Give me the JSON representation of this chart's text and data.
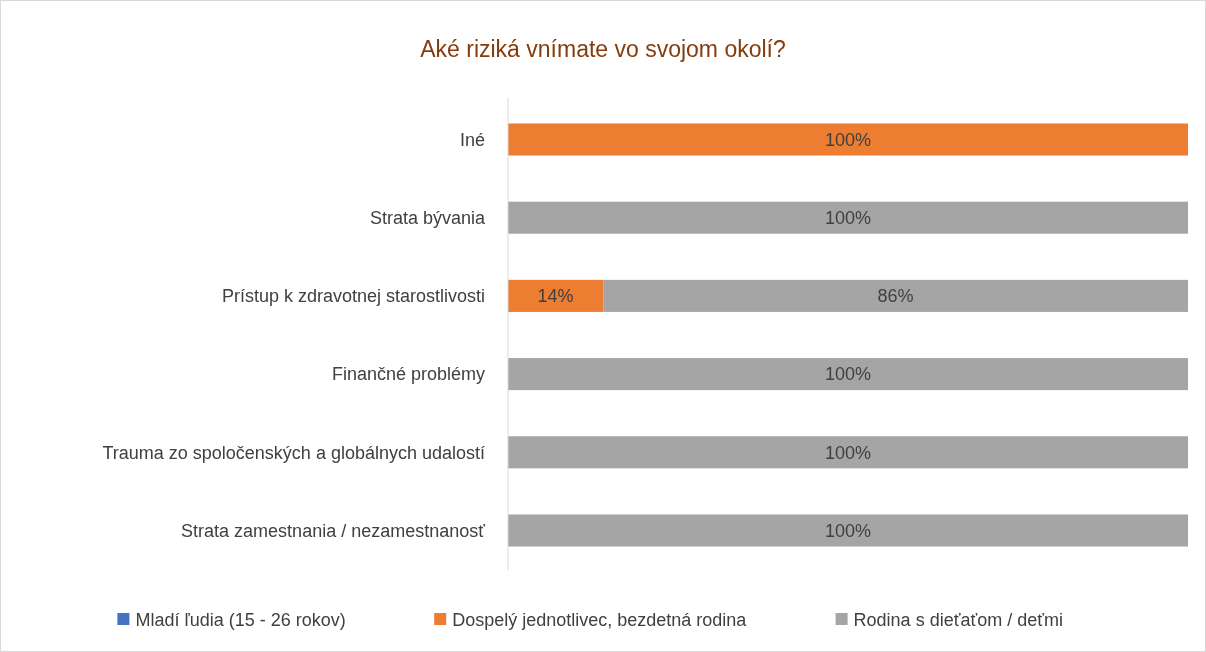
{
  "chart_data": {
    "type": "bar",
    "orientation": "horizontal",
    "stacked": true,
    "title": "Aké riziká vnímate vo svojom okolí?",
    "legend": "bottom",
    "grid": false,
    "categories": [
      "Iné",
      "Strata bývania",
      "Prístup k zdravotnej starostlivosti",
      "Finančné problémy",
      "Trauma zo spoločenských a globálnych udalostí",
      "Strata zamestnania / nezamestnanosť"
    ],
    "series": [
      {
        "name": "Mladí ľudia (15 - 26 rokov)",
        "color": "#4472c4",
        "values": [
          0,
          0,
          0,
          0,
          0,
          0
        ],
        "value_labels": [
          null,
          null,
          null,
          null,
          null,
          null
        ]
      },
      {
        "name": "Dospelý jednotlivec, bezdetná rodina",
        "color": "#ed7d31",
        "values": [
          100,
          0,
          14,
          0,
          0,
          0
        ],
        "value_labels": [
          "100%",
          null,
          "14%",
          null,
          null,
          null
        ]
      },
      {
        "name": "Rodina s dieťaťom / deťmi",
        "color": "#a5a5a5",
        "values": [
          0,
          100,
          86,
          100,
          100,
          100
        ],
        "value_labels": [
          null,
          "100%",
          "86%",
          "100%",
          "100%",
          "100%"
        ]
      }
    ]
  }
}
